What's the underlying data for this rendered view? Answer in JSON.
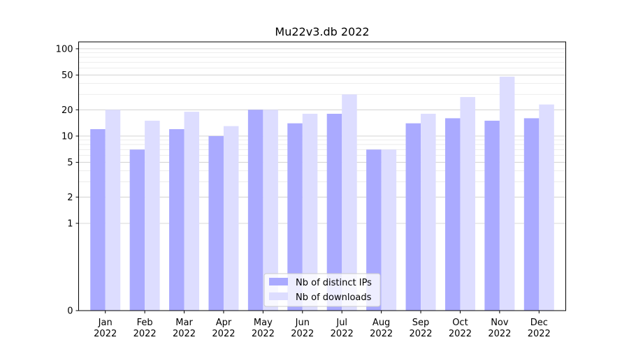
{
  "chart_data": {
    "type": "bar",
    "title": "Mu22v3.db 2022",
    "xlabel": "",
    "ylabel": "",
    "y_scale": "symlog",
    "ylim": [
      0,
      120
    ],
    "y_ticks": [
      0,
      1,
      2,
      5,
      10,
      20,
      50,
      100
    ],
    "y_tick_labels": [
      "0",
      "1",
      "2",
      "5",
      "10",
      "20",
      "50",
      "100"
    ],
    "grid": true,
    "legend_position": "bottom-center",
    "categories": [
      [
        "Jan",
        "2022"
      ],
      [
        "Feb",
        "2022"
      ],
      [
        "Mar",
        "2022"
      ],
      [
        "Apr",
        "2022"
      ],
      [
        "May",
        "2022"
      ],
      [
        "Jun",
        "2022"
      ],
      [
        "Jul",
        "2022"
      ],
      [
        "Aug",
        "2022"
      ],
      [
        "Sep",
        "2022"
      ],
      [
        "Oct",
        "2022"
      ],
      [
        "Nov",
        "2022"
      ],
      [
        "Dec",
        "2022"
      ]
    ],
    "series": [
      {
        "name": "Nb of distinct IPs",
        "color": "#aaaaff",
        "values": [
          12,
          7,
          12,
          10,
          20,
          14,
          18,
          7,
          14,
          16,
          15,
          16
        ]
      },
      {
        "name": "Nb of downloads",
        "color": "#ddddff",
        "values": [
          20,
          15,
          19,
          13,
          20,
          18,
          30,
          7,
          18,
          28,
          48,
          23
        ]
      }
    ]
  }
}
